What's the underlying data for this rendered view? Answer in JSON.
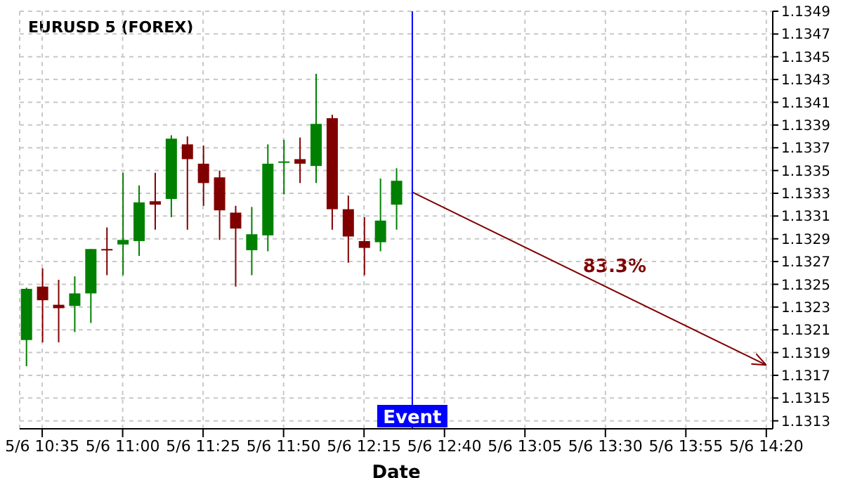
{
  "chart_data": {
    "type": "candlestick",
    "title": "EURUSD 5 (FOREX)",
    "xlabel": "Date",
    "x": [
      "--05-06T10:30",
      "--05-06T10:35",
      "--05-06T10:40",
      "--05-06T10:45",
      "--05-06T10:50",
      "--05-06T10:55",
      "--05-06T11:00",
      "--05-06T11:05",
      "--05-06T11:10",
      "--05-06T11:15",
      "--05-06T11:20",
      "--05-06T11:25",
      "--05-06T11:30",
      "--05-06T11:35",
      "--05-06T11:40",
      "--05-06T11:45",
      "--05-06T11:50",
      "--05-06T11:55",
      "--05-06T12:00",
      "--05-06T12:05",
      "--05-06T12:10",
      "--05-06T12:15",
      "--05-06T12:20",
      "--05-06T12:25"
    ],
    "ohlc": [
      [
        1.13201,
        1.13247,
        1.13178,
        1.13246
      ],
      [
        1.13248,
        1.13264,
        1.13199,
        1.13236
      ],
      [
        1.13232,
        1.13254,
        1.13199,
        1.13229
      ],
      [
        1.13231,
        1.13257,
        1.13208,
        1.13242
      ],
      [
        1.13242,
        1.13281,
        1.13216,
        1.13281
      ],
      [
        1.13281,
        1.133,
        1.13258,
        1.1328
      ],
      [
        1.13285,
        1.13348,
        1.13258,
        1.13289
      ],
      [
        1.13288,
        1.13337,
        1.13275,
        1.13322
      ],
      [
        1.13323,
        1.13348,
        1.13298,
        1.1332
      ],
      [
        1.13325,
        1.13381,
        1.13309,
        1.13378
      ],
      [
        1.13373,
        1.1338,
        1.13298,
        1.1336
      ],
      [
        1.13356,
        1.13372,
        1.13319,
        1.13339
      ],
      [
        1.13344,
        1.1335,
        1.13289,
        1.13315
      ],
      [
        1.13313,
        1.13319,
        1.13248,
        1.13299
      ],
      [
        1.1328,
        1.13318,
        1.13258,
        1.13294
      ],
      [
        1.13293,
        1.13373,
        1.13279,
        1.13356
      ],
      [
        1.13357,
        1.13377,
        1.13329,
        1.13358
      ],
      [
        1.1336,
        1.13379,
        1.13339,
        1.13356
      ],
      [
        1.13354,
        1.13435,
        1.13339,
        1.13391
      ],
      [
        1.13396,
        1.13399,
        1.13298,
        1.13316
      ],
      [
        1.13316,
        1.13328,
        1.13269,
        1.13292
      ],
      [
        1.13288,
        1.13309,
        1.13258,
        1.13282
      ],
      [
        1.13287,
        1.13343,
        1.13279,
        1.13306
      ],
      [
        1.1332,
        1.13352,
        1.13298,
        1.13341
      ]
    ],
    "colors": [
      "#008000",
      "#800000",
      "#800000",
      "#008000",
      "#008000",
      "#800000",
      "#008000",
      "#008000",
      "#800000",
      "#008000",
      "#800000",
      "#800000",
      "#800000",
      "#800000",
      "#008000",
      "#008000",
      "#008000",
      "#800000",
      "#008000",
      "#800000",
      "#800000",
      "#800000",
      "#008000",
      "#008000"
    ],
    "series": [
      {
        "type": "line",
        "x": [
          "--05-06T12:30",
          "--05-06T14:20"
        ],
        "values": [
          1.13331,
          1.13179
        ],
        "color": "#800000"
      }
    ],
    "annotations": [
      "83.3%"
    ],
    "ref_lines": [
      {
        "axis": "x",
        "value": "--05-06T12:30",
        "label": "Event",
        "color": "#0000ff"
      }
    ],
    "xlim": [
      "--05-06T10:28",
      "--05-06T14:22"
    ],
    "xticks": [
      {
        "value": "--05-06T10:35",
        "label": "5/6 10:35"
      },
      {
        "value": "--05-06T11:00",
        "label": "5/6 11:00"
      },
      {
        "value": "--05-06T11:25",
        "label": "5/6 11:25"
      },
      {
        "value": "--05-06T11:50",
        "label": "5/6 11:50"
      },
      {
        "value": "--05-06T12:15",
        "label": "5/6 12:15"
      },
      {
        "value": "--05-06T12:40",
        "label": "5/6 12:40"
      },
      {
        "value": "--05-06T13:05",
        "label": "5/6 13:05"
      },
      {
        "value": "--05-06T13:30",
        "label": "5/6 13:30"
      },
      {
        "value": "--05-06T13:55",
        "label": "5/6 13:55"
      },
      {
        "value": "--05-06T14:20",
        "label": "5/6 14:20"
      }
    ],
    "ylim": [
      1.13123,
      1.1349
    ],
    "yticks": [
      1.1313,
      1.1315,
      1.1317,
      1.1319,
      1.1321,
      1.1323,
      1.1325,
      1.1327,
      1.1329,
      1.1331,
      1.1333,
      1.1335,
      1.1337,
      1.1339,
      1.1341,
      1.1343,
      1.1345,
      1.1347,
      1.1349
    ],
    "grid": true,
    "legend": false
  }
}
